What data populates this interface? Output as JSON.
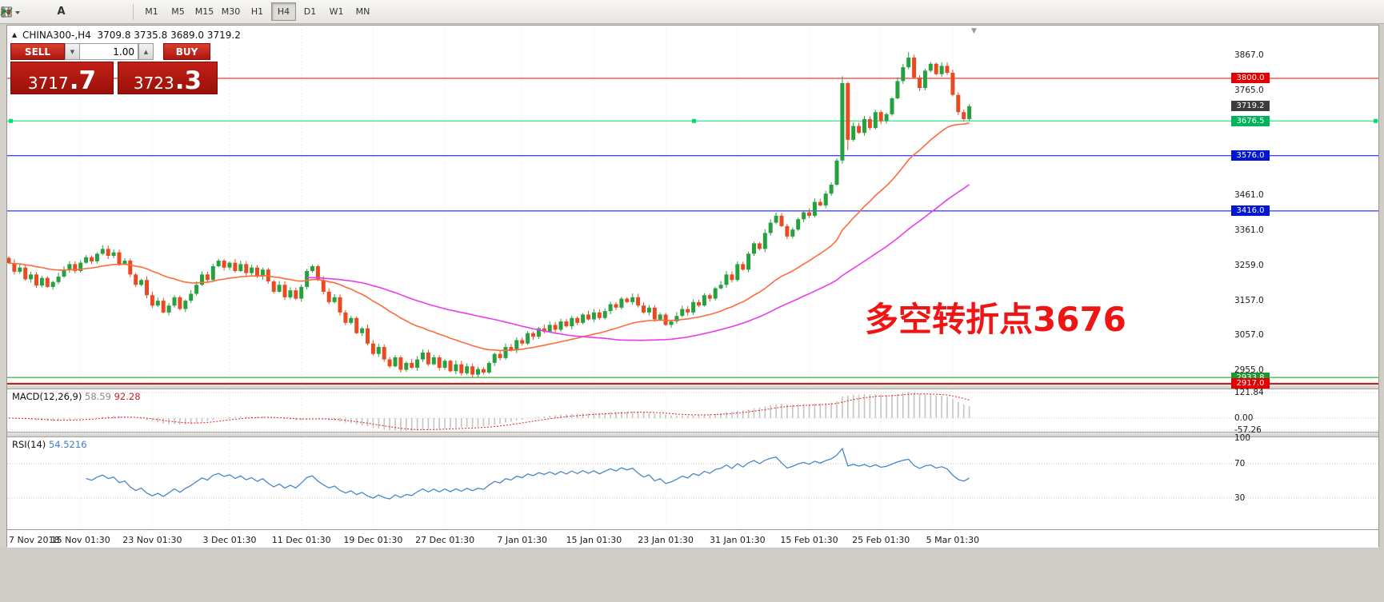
{
  "toolbar": {
    "icons": [
      "candlestick-chart",
      "grid",
      "text-tool",
      "template",
      "indicators-dropdown"
    ],
    "timeframes": [
      "M1",
      "M5",
      "M15",
      "M30",
      "H1",
      "H4",
      "D1",
      "W1",
      "MN"
    ],
    "active_timeframe": "H4"
  },
  "chart_header": {
    "symbol": "CHINA300-,H4",
    "ohlc": "3709.8 3735.8 3689.0 3719.2"
  },
  "trade_panel": {
    "sell_label": "SELL",
    "buy_label": "BUY",
    "volume": "1.00",
    "sell_price_main": "3717",
    "sell_price_frac": ".7",
    "buy_price_main": "3723",
    "buy_price_frac": ".3"
  },
  "annotation": {
    "text": "多空转折点3676",
    "color": "#f01515"
  },
  "price_axis": {
    "ticks": [
      {
        "price": 3867,
        "label": "3867.0"
      },
      {
        "price": 3765,
        "label": "3765.0"
      },
      {
        "price": 3461,
        "label": "3461.0"
      },
      {
        "price": 3361,
        "label": "3361.0"
      },
      {
        "price": 3259,
        "label": "3259.0"
      },
      {
        "price": 3157,
        "label": "3157.0"
      },
      {
        "price": 3057,
        "label": "3057.0"
      },
      {
        "price": 2955,
        "label": "2955.0"
      }
    ],
    "badges": [
      {
        "price": 3800.0,
        "label": "3800.0",
        "color": "#e30000"
      },
      {
        "price": 3719.2,
        "label": "3719.2",
        "color": "#3d3d3d"
      },
      {
        "price": 3676.5,
        "label": "3676.5",
        "color": "#00b45c"
      },
      {
        "price": 3576.0,
        "label": "3576.0",
        "color": "#0016d2"
      },
      {
        "price": 3416.0,
        "label": "3416.0",
        "color": "#0016d2"
      },
      {
        "price": 2933.8,
        "label": "2933.8",
        "color": "#1e9632"
      },
      {
        "price": 2917.0,
        "label": "2917.0",
        "color": "#e30000"
      }
    ]
  },
  "hlines": [
    {
      "price": 3800.0,
      "color": "#ff0000",
      "width": 1
    },
    {
      "price": 3676.5,
      "color": "#00e070",
      "width": 1,
      "handles": true
    },
    {
      "price": 3576.0,
      "color": "#0000ff",
      "width": 1
    },
    {
      "price": 3416.0,
      "color": "#0000ff",
      "width": 1
    },
    {
      "price": 2933.8,
      "color": "#00a000",
      "width": 1
    },
    {
      "price": 2917.0,
      "color": "#d40000",
      "width": 1
    }
  ],
  "macd": {
    "label": "MACD(12,26,9)",
    "value1": "58.59",
    "value2": "92.28",
    "axis": [
      "121.84",
      "0.00",
      "-57.26"
    ]
  },
  "rsi": {
    "label": "RSI(14)",
    "value": "54.5216",
    "axis": [
      "100",
      "70",
      "30"
    ]
  },
  "time_axis": {
    "labels": [
      {
        "i": 0,
        "text": "7 Nov 2018"
      },
      {
        "i": 13,
        "text": "15 Nov 01:30"
      },
      {
        "i": 26,
        "text": "23 Nov 01:30"
      },
      {
        "i": 40,
        "text": "3 Dec 01:30"
      },
      {
        "i": 53,
        "text": "11 Dec 01:30"
      },
      {
        "i": 66,
        "text": "19 Dec 01:30"
      },
      {
        "i": 79,
        "text": "27 Dec 01:30"
      },
      {
        "i": 93,
        "text": "7 Jan 01:30"
      },
      {
        "i": 106,
        "text": "15 Jan 01:30"
      },
      {
        "i": 119,
        "text": "23 Jan 01:30"
      },
      {
        "i": 132,
        "text": "31 Jan 01:30"
      },
      {
        "i": 145,
        "text": "15 Feb 01:30"
      },
      {
        "i": 158,
        "text": "25 Feb 01:30"
      },
      {
        "i": 171,
        "text": "5 Mar 01:30"
      }
    ]
  },
  "chart_data": {
    "type": "candlestick",
    "symbol": "CHINA300-",
    "timeframe": "H4",
    "ylim": [
      2917,
      3952
    ],
    "first_open": 3280,
    "closes": [
      3265,
      3240,
      3252,
      3218,
      3232,
      3200,
      3222,
      3196,
      3210,
      3226,
      3246,
      3262,
      3242,
      3266,
      3282,
      3270,
      3292,
      3306,
      3286,
      3296,
      3262,
      3272,
      3232,
      3202,
      3216,
      3172,
      3142,
      3156,
      3122,
      3142,
      3166,
      3132,
      3156,
      3176,
      3202,
      3232,
      3216,
      3256,
      3272,
      3252,
      3266,
      3242,
      3262,
      3236,
      3252,
      3226,
      3246,
      3212,
      3182,
      3202,
      3166,
      3186,
      3162,
      3196,
      3242,
      3256,
      3216,
      3182,
      3152,
      3166,
      3122,
      3092,
      3106,
      3062,
      3076,
      3032,
      3002,
      3022,
      2986,
      2966,
      2992,
      2956,
      2976,
      2962,
      2986,
      3006,
      2972,
      2992,
      2962,
      2982,
      2952,
      2972,
      2946,
      2966,
      2942,
      2958,
      2948,
      2976,
      3002,
      2990,
      3022,
      3012,
      3042,
      3032,
      3062,
      3052,
      3076,
      3066,
      3086,
      3072,
      3096,
      3082,
      3106,
      3092,
      3116,
      3102,
      3122,
      3106,
      3126,
      3146,
      3136,
      3162,
      3152,
      3166,
      3142,
      3122,
      3136,
      3102,
      3116,
      3086,
      3096,
      3112,
      3132,
      3122,
      3152,
      3142,
      3172,
      3162,
      3192,
      3202,
      3232,
      3216,
      3262,
      3246,
      3292,
      3322,
      3306,
      3352,
      3382,
      3402,
      3372,
      3342,
      3362,
      3392,
      3412,
      3402,
      3442,
      3432,
      3466,
      3492,
      3562,
      3786,
      3622,
      3662,
      3642,
      3682,
      3656,
      3702,
      3676,
      3696,
      3742,
      3792,
      3832,
      3860,
      3802,
      3772,
      3822,
      3842,
      3812,
      3836,
      3816,
      3752,
      3702,
      3682,
      3719.2
    ],
    "wick_overrides": {
      "84": {
        "low": 2934
      },
      "151": {
        "high": 3806
      },
      "152": {
        "low": 3592
      },
      "163": {
        "high": 3876
      }
    },
    "colors": {
      "up": "#26a13f",
      "down": "#ea4a22",
      "ma_fast": "#ff6a3c",
      "ma_slow": "#ea3cea",
      "rsi_line": "#4a86c8",
      "macd_hist": "#c4c4c4",
      "macd_signal": "#e02020"
    }
  }
}
